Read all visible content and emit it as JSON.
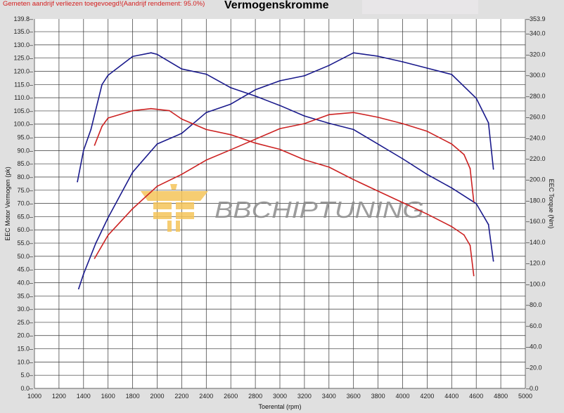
{
  "header": {
    "note": "Gemeten aandrijf verliezen toegevoegd!(Aandrijf rendement: 95.0%)",
    "title": "Vermogenskromme"
  },
  "watermark": {
    "text": "BBCHIPTUNING",
    "logo_color": "#f5c55a",
    "text_color": "#8c8c8c"
  },
  "chart_data": {
    "type": "line",
    "title": "Vermogenskromme",
    "xlabel": "Toerental (rpm)",
    "ylabel": "EEC Motor Vermogen (pk)",
    "y2label": "EEC Torque (Nm)",
    "xlim": [
      1000,
      5000
    ],
    "ylim": [
      0,
      139.8
    ],
    "y2lim": [
      0,
      353.9
    ],
    "grid": true,
    "x_ticks": [
      1000,
      1200,
      1400,
      1600,
      1800,
      2000,
      2200,
      2400,
      2600,
      2800,
      3000,
      3200,
      3400,
      3600,
      3800,
      4000,
      4200,
      4400,
      4600,
      4800,
      5000
    ],
    "y_ticks": [
      "0.0",
      "5.0",
      "10.0",
      "15.0",
      "20.0",
      "25.0",
      "30.0",
      "35.0",
      "40.0",
      "45.0",
      "50.0",
      "55.0",
      "60.0",
      "65.0",
      "70.0",
      "75.0",
      "80.0",
      "85.0",
      "90.0",
      "95.0",
      "100.0",
      "105.0",
      "110.0",
      "115.0",
      "120.0",
      "125.0",
      "130.0",
      "135.0",
      "139.8"
    ],
    "y2_ticks": [
      "0.0",
      "20.0",
      "40.0",
      "60.0",
      "80.0",
      "100.0",
      "120.0",
      "140.0",
      "160.0",
      "180.0",
      "200.0",
      "220.0",
      "240.0",
      "260.0",
      "280.0",
      "300.0",
      "320.0",
      "340.0",
      "353.9"
    ],
    "series": [
      {
        "axis": "left",
        "color": "#1a1a8c",
        "x": [
          1360,
          1400,
          1500,
          1600,
          1800,
          2000,
          2200,
          2400,
          2600,
          2800,
          3000,
          3200,
          3400,
          3600,
          3800,
          4000,
          4200,
          4400,
          4600,
          4700,
          4740
        ],
        "y": [
          37.7,
          43.3,
          55,
          64.6,
          81.8,
          92.5,
          96.5,
          104.4,
          107.6,
          113,
          116.4,
          118.3,
          122.2,
          127,
          125.7,
          123.6,
          121.2,
          118.8,
          109.8,
          100.5,
          83
        ]
      },
      {
        "axis": "right",
        "color": "#1a1a8c",
        "x": [
          1350,
          1400,
          1460,
          1550,
          1600,
          1800,
          1950,
          2000,
          2200,
          2400,
          2600,
          2800,
          3000,
          3200,
          3400,
          3600,
          3800,
          4000,
          4200,
          4400,
          4600,
          4700,
          4740
        ],
        "y": [
          198,
          228,
          248,
          291,
          300,
          318,
          321.5,
          320,
          306,
          301,
          288,
          280,
          271,
          261,
          254,
          248,
          234,
          220,
          205,
          192,
          177,
          157,
          122
        ]
      },
      {
        "axis": "left",
        "color": "#cc2222",
        "x": [
          1490,
          1600,
          1800,
          2000,
          2200,
          2400,
          2600,
          2800,
          3000,
          3200,
          3400,
          3600,
          3800,
          4000,
          4200,
          4400,
          4500,
          4550,
          4580
        ],
        "y": [
          49.2,
          58,
          68,
          76.5,
          81,
          86.4,
          90.3,
          94.3,
          98.3,
          100.2,
          103.6,
          104.4,
          102.6,
          100.2,
          97.3,
          92.5,
          88.5,
          83.2,
          70.7
        ]
      },
      {
        "axis": "right",
        "color": "#cc2222",
        "x": [
          1490,
          1550,
          1600,
          1800,
          1950,
          2100,
          2200,
          2400,
          2600,
          2800,
          3000,
          3200,
          3400,
          3600,
          3800,
          4000,
          4200,
          4400,
          4500,
          4550,
          4580
        ],
        "y": [
          233,
          251,
          259,
          266,
          268,
          266,
          258,
          248,
          243,
          235,
          229,
          219,
          212,
          200,
          189,
          178,
          167,
          155,
          147,
          137,
          108
        ]
      }
    ]
  }
}
